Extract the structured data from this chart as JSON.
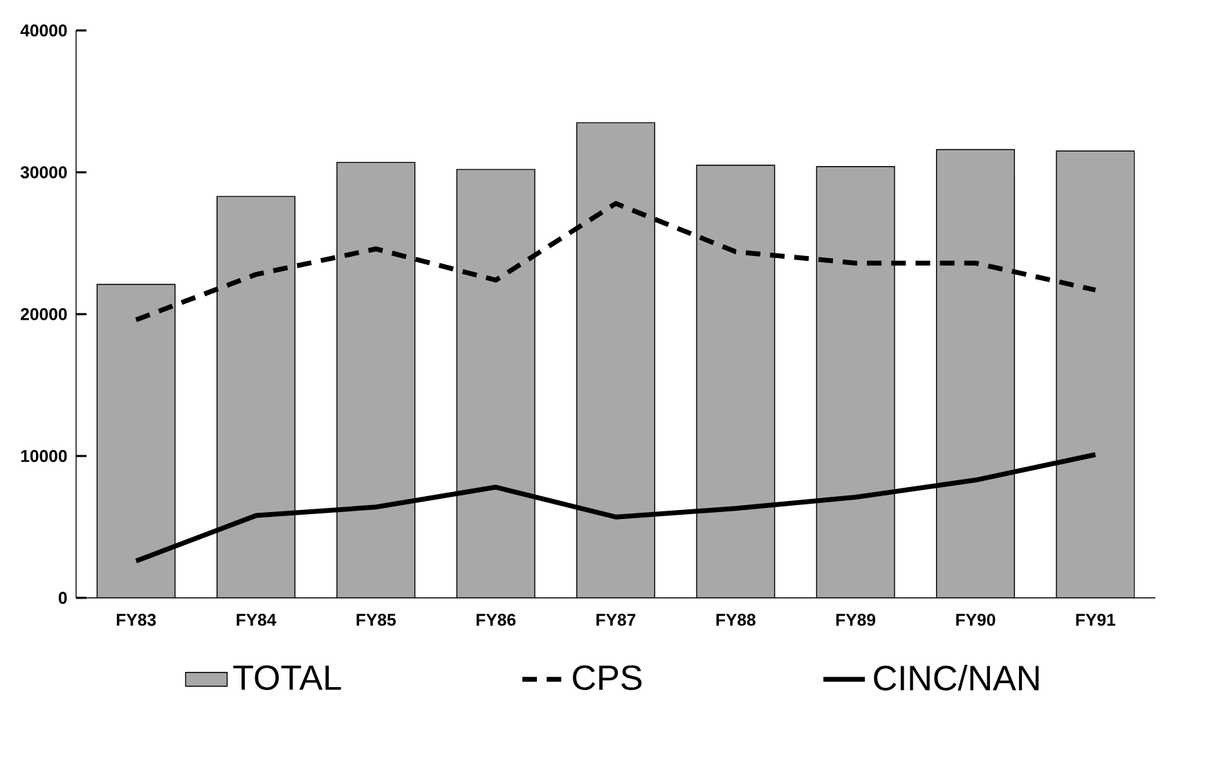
{
  "chart_data": {
    "type": "bar",
    "categories": [
      "FY83",
      "FY84",
      "FY85",
      "FY86",
      "FY87",
      "FY88",
      "FY89",
      "FY90",
      "FY91"
    ],
    "series": [
      {
        "name": "TOTAL",
        "color": "#a8a8a8",
        "values": [
          22100,
          28300,
          30700,
          30200,
          33500,
          30500,
          30400,
          31600,
          31500
        ]
      },
      {
        "name": "CPS",
        "type": "line",
        "color": "#000000",
        "line_style": "dashed",
        "values": [
          19600,
          22800,
          24600,
          22400,
          27800,
          24400,
          23600,
          23600,
          21700
        ]
      },
      {
        "name": "CINC/NAN",
        "type": "line",
        "color": "#000000",
        "line_style": "solid",
        "values": [
          2600,
          5800,
          6400,
          7800,
          5700,
          6300,
          7100,
          8300,
          10100
        ]
      }
    ],
    "ylim": [
      0,
      40000
    ],
    "yticks": [
      0,
      10000,
      20000,
      30000,
      40000
    ],
    "grid": false,
    "legend": "bottom",
    "marker": "none"
  }
}
